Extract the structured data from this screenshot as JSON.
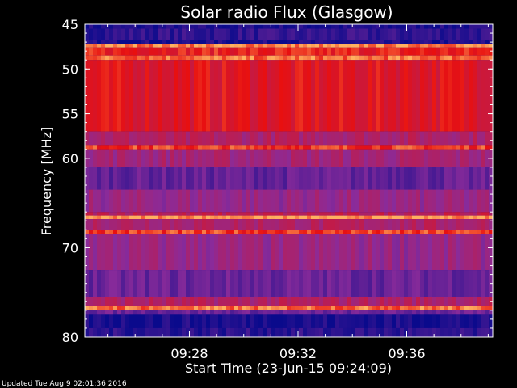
{
  "chart_data": {
    "type": "heatmap",
    "title": "Solar radio Flux (Glasgow)",
    "xlabel": "Start Time (23-Jun-15 09:24:09)",
    "ylabel": "Frequency [MHz]",
    "y_range": [
      45,
      80
    ],
    "y_ticks": [
      45,
      50,
      55,
      60,
      70,
      80
    ],
    "x_ticks": [
      "09:28",
      "09:32",
      "09:36"
    ],
    "x_range": [
      "09:24:09",
      "09:39:10"
    ],
    "grid": false,
    "colors": {
      "background": "#000000",
      "low": "#0a0a8c",
      "mid": "#8a2b9a",
      "high": "#e81010",
      "peak": "#ffb060"
    },
    "bands": [
      {
        "from": 45.0,
        "to": 45.5,
        "level": 0.05
      },
      {
        "from": 45.5,
        "to": 46.8,
        "level": 0.12
      },
      {
        "from": 46.8,
        "to": 47.2,
        "level": 0.05
      },
      {
        "from": 47.2,
        "to": 47.6,
        "level": 0.95
      },
      {
        "from": 47.6,
        "to": 48.5,
        "level": 0.8
      },
      {
        "from": 48.5,
        "to": 49.0,
        "level": 0.92
      },
      {
        "from": 49.0,
        "to": 57.0,
        "level": 0.75
      },
      {
        "from": 57.0,
        "to": 58.5,
        "level": 0.55
      },
      {
        "from": 58.5,
        "to": 59.0,
        "level": 0.85
      },
      {
        "from": 59.0,
        "to": 61.0,
        "level": 0.5
      },
      {
        "from": 61.0,
        "to": 63.5,
        "level": 0.28
      },
      {
        "from": 63.5,
        "to": 66.0,
        "level": 0.45
      },
      {
        "from": 66.0,
        "to": 66.4,
        "level": 0.6
      },
      {
        "from": 66.4,
        "to": 66.8,
        "level": 0.98
      },
      {
        "from": 66.8,
        "to": 68.0,
        "level": 0.55
      },
      {
        "from": 68.0,
        "to": 68.5,
        "level": 0.85
      },
      {
        "from": 68.5,
        "to": 72.5,
        "level": 0.45
      },
      {
        "from": 72.5,
        "to": 75.5,
        "level": 0.3
      },
      {
        "from": 75.5,
        "to": 76.5,
        "level": 0.55
      },
      {
        "from": 76.5,
        "to": 77.0,
        "level": 0.92
      },
      {
        "from": 77.0,
        "to": 77.5,
        "level": 0.3
      },
      {
        "from": 77.5,
        "to": 79.0,
        "level": 0.05
      },
      {
        "from": 79.0,
        "to": 80.0,
        "level": 0.1
      }
    ]
  },
  "footer": "Updated Tue Aug  9 02:01:36 2016"
}
